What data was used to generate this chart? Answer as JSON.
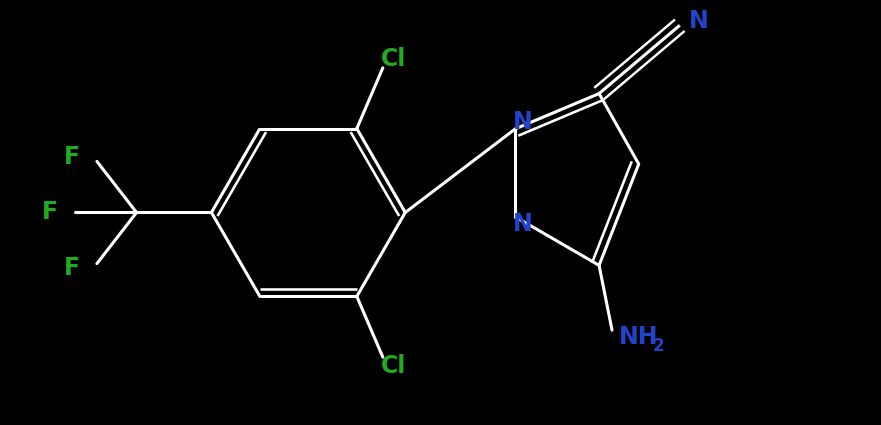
{
  "bg_color": "#000000",
  "bond_color": "#ffffff",
  "N_color": "#2244cc",
  "Cl_color": "#22aa22",
  "F_color": "#22aa22",
  "bond_width": 2.2,
  "font_size_atom": 17,
  "font_size_subscript": 12,
  "xlim": [
    -3.5,
    6.5
  ],
  "ylim": [
    -2.3,
    2.3
  ]
}
